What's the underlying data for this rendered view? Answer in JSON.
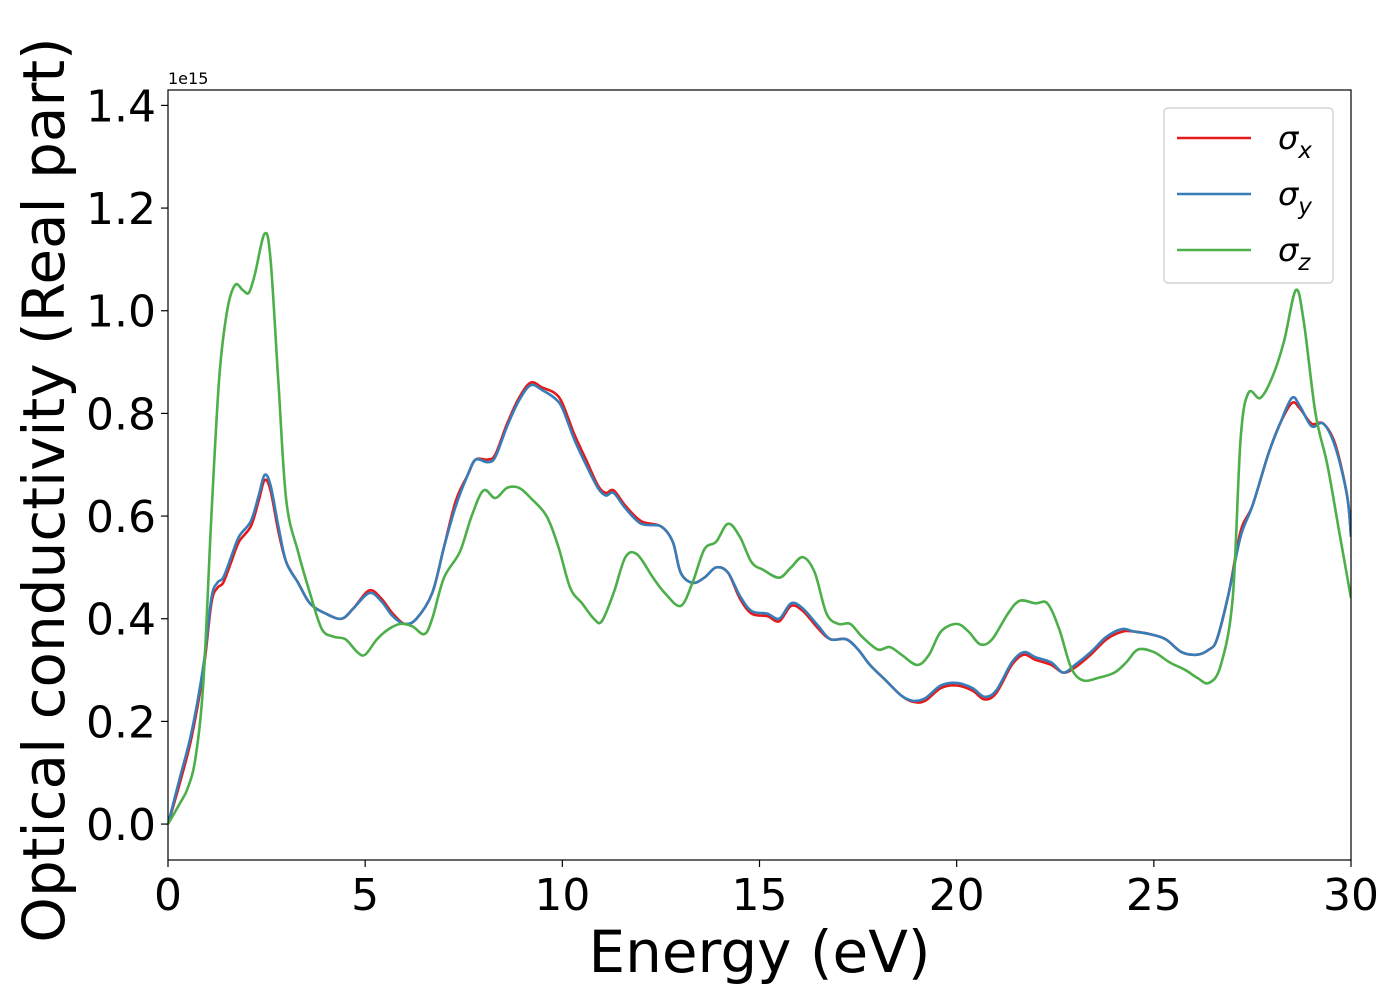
{
  "chart_data": {
    "type": "line",
    "xlabel": "Energy (eV)",
    "ylabel": "Optical conductivity (Real part)",
    "y_offset_label": "1e15",
    "xlim": [
      0,
      30
    ],
    "ylim": [
      -0.07,
      1.43
    ],
    "x_ticks": [
      0,
      5,
      10,
      15,
      20,
      25,
      30
    ],
    "x_tick_labels": [
      "0",
      "5",
      "10",
      "15",
      "20",
      "25",
      "30"
    ],
    "y_ticks": [
      0.0,
      0.2,
      0.4,
      0.6,
      0.8,
      1.0,
      1.2,
      1.4
    ],
    "y_tick_labels": [
      "0.0",
      "0.2",
      "0.4",
      "0.6",
      "0.8",
      "1.0",
      "1.2",
      "1.4"
    ],
    "grid": false,
    "legend_position": "top-right",
    "series": [
      {
        "name": "σx",
        "name_base": "σ",
        "name_sub": "x",
        "color": "#e41a1c",
        "points": [
          [
            0,
            0
          ],
          [
            0.3,
            0.08
          ],
          [
            0.6,
            0.17
          ],
          [
            0.9,
            0.3
          ],
          [
            1.1,
            0.43
          ],
          [
            1.25,
            0.46
          ],
          [
            1.4,
            0.47
          ],
          [
            1.6,
            0.51
          ],
          [
            1.8,
            0.55
          ],
          [
            2.1,
            0.58
          ],
          [
            2.3,
            0.63
          ],
          [
            2.45,
            0.67
          ],
          [
            2.6,
            0.65
          ],
          [
            2.8,
            0.57
          ],
          [
            3.0,
            0.51
          ],
          [
            3.3,
            0.47
          ],
          [
            3.6,
            0.43
          ],
          [
            4.0,
            0.41
          ],
          [
            4.4,
            0.4
          ],
          [
            4.7,
            0.42
          ],
          [
            5.1,
            0.455
          ],
          [
            5.4,
            0.44
          ],
          [
            5.7,
            0.41
          ],
          [
            6.0,
            0.39
          ],
          [
            6.3,
            0.4
          ],
          [
            6.7,
            0.45
          ],
          [
            7.0,
            0.54
          ],
          [
            7.3,
            0.63
          ],
          [
            7.6,
            0.68
          ],
          [
            7.8,
            0.71
          ],
          [
            8.1,
            0.71
          ],
          [
            8.3,
            0.72
          ],
          [
            8.6,
            0.78
          ],
          [
            8.9,
            0.83
          ],
          [
            9.2,
            0.86
          ],
          [
            9.5,
            0.85
          ],
          [
            9.8,
            0.84
          ],
          [
            10.0,
            0.82
          ],
          [
            10.3,
            0.76
          ],
          [
            10.6,
            0.71
          ],
          [
            10.9,
            0.66
          ],
          [
            11.1,
            0.645
          ],
          [
            11.3,
            0.65
          ],
          [
            11.6,
            0.62
          ],
          [
            12.0,
            0.59
          ],
          [
            12.5,
            0.58
          ],
          [
            12.8,
            0.55
          ],
          [
            13.0,
            0.49
          ],
          [
            13.3,
            0.47
          ],
          [
            13.6,
            0.48
          ],
          [
            13.9,
            0.5
          ],
          [
            14.2,
            0.49
          ],
          [
            14.5,
            0.44
          ],
          [
            14.8,
            0.41
          ],
          [
            15.2,
            0.405
          ],
          [
            15.5,
            0.395
          ],
          [
            15.8,
            0.425
          ],
          [
            16.1,
            0.415
          ],
          [
            16.5,
            0.38
          ],
          [
            16.8,
            0.36
          ],
          [
            17.2,
            0.36
          ],
          [
            17.5,
            0.34
          ],
          [
            17.8,
            0.31
          ],
          [
            18.2,
            0.28
          ],
          [
            18.6,
            0.25
          ],
          [
            18.9,
            0.238
          ],
          [
            19.2,
            0.24
          ],
          [
            19.6,
            0.265
          ],
          [
            20.0,
            0.27
          ],
          [
            20.4,
            0.26
          ],
          [
            20.7,
            0.243
          ],
          [
            21.0,
            0.255
          ],
          [
            21.4,
            0.31
          ],
          [
            21.7,
            0.33
          ],
          [
            22.0,
            0.32
          ],
          [
            22.4,
            0.31
          ],
          [
            22.7,
            0.295
          ],
          [
            23.0,
            0.305
          ],
          [
            23.4,
            0.33
          ],
          [
            23.8,
            0.36
          ],
          [
            24.2,
            0.375
          ],
          [
            24.5,
            0.375
          ],
          [
            24.9,
            0.37
          ],
          [
            25.3,
            0.36
          ],
          [
            25.7,
            0.335
          ],
          [
            26.1,
            0.33
          ],
          [
            26.4,
            0.34
          ],
          [
            26.6,
            0.36
          ],
          [
            26.9,
            0.45
          ],
          [
            27.2,
            0.57
          ],
          [
            27.5,
            0.62
          ],
          [
            27.9,
            0.72
          ],
          [
            28.2,
            0.78
          ],
          [
            28.5,
            0.82
          ],
          [
            28.7,
            0.81
          ],
          [
            29.0,
            0.78
          ],
          [
            29.3,
            0.78
          ],
          [
            29.6,
            0.74
          ],
          [
            29.9,
            0.64
          ],
          [
            30.0,
            0.56
          ]
        ]
      },
      {
        "name": "σy",
        "name_base": "σ",
        "name_sub": "y",
        "color": "#377eb8",
        "points": [
          [
            0,
            0
          ],
          [
            0.3,
            0.09
          ],
          [
            0.6,
            0.18
          ],
          [
            0.9,
            0.31
          ],
          [
            1.1,
            0.44
          ],
          [
            1.25,
            0.47
          ],
          [
            1.4,
            0.48
          ],
          [
            1.6,
            0.52
          ],
          [
            1.8,
            0.56
          ],
          [
            2.1,
            0.59
          ],
          [
            2.3,
            0.64
          ],
          [
            2.45,
            0.68
          ],
          [
            2.6,
            0.66
          ],
          [
            2.8,
            0.58
          ],
          [
            3.0,
            0.51
          ],
          [
            3.3,
            0.47
          ],
          [
            3.6,
            0.43
          ],
          [
            4.0,
            0.41
          ],
          [
            4.4,
            0.4
          ],
          [
            4.7,
            0.42
          ],
          [
            5.1,
            0.45
          ],
          [
            5.4,
            0.435
          ],
          [
            5.7,
            0.405
          ],
          [
            6.0,
            0.39
          ],
          [
            6.3,
            0.4
          ],
          [
            6.7,
            0.45
          ],
          [
            7.0,
            0.54
          ],
          [
            7.3,
            0.62
          ],
          [
            7.6,
            0.68
          ],
          [
            7.8,
            0.71
          ],
          [
            8.1,
            0.705
          ],
          [
            8.3,
            0.715
          ],
          [
            8.6,
            0.775
          ],
          [
            8.9,
            0.825
          ],
          [
            9.2,
            0.855
          ],
          [
            9.5,
            0.845
          ],
          [
            9.8,
            0.83
          ],
          [
            10.0,
            0.81
          ],
          [
            10.3,
            0.75
          ],
          [
            10.6,
            0.7
          ],
          [
            10.9,
            0.655
          ],
          [
            11.1,
            0.64
          ],
          [
            11.3,
            0.645
          ],
          [
            11.6,
            0.615
          ],
          [
            12.0,
            0.585
          ],
          [
            12.5,
            0.58
          ],
          [
            12.8,
            0.55
          ],
          [
            13.0,
            0.49
          ],
          [
            13.3,
            0.47
          ],
          [
            13.6,
            0.48
          ],
          [
            13.9,
            0.5
          ],
          [
            14.2,
            0.49
          ],
          [
            14.5,
            0.445
          ],
          [
            14.8,
            0.415
          ],
          [
            15.2,
            0.41
          ],
          [
            15.5,
            0.4
          ],
          [
            15.8,
            0.43
          ],
          [
            16.1,
            0.42
          ],
          [
            16.5,
            0.385
          ],
          [
            16.8,
            0.36
          ],
          [
            17.2,
            0.36
          ],
          [
            17.5,
            0.34
          ],
          [
            17.8,
            0.31
          ],
          [
            18.2,
            0.28
          ],
          [
            18.6,
            0.25
          ],
          [
            18.9,
            0.24
          ],
          [
            19.2,
            0.245
          ],
          [
            19.6,
            0.27
          ],
          [
            20.0,
            0.275
          ],
          [
            20.4,
            0.265
          ],
          [
            20.7,
            0.248
          ],
          [
            21.0,
            0.26
          ],
          [
            21.4,
            0.315
          ],
          [
            21.7,
            0.335
          ],
          [
            22.0,
            0.325
          ],
          [
            22.4,
            0.315
          ],
          [
            22.7,
            0.295
          ],
          [
            23.0,
            0.31
          ],
          [
            23.4,
            0.335
          ],
          [
            23.8,
            0.365
          ],
          [
            24.2,
            0.38
          ],
          [
            24.5,
            0.375
          ],
          [
            24.9,
            0.37
          ],
          [
            25.3,
            0.36
          ],
          [
            25.7,
            0.335
          ],
          [
            26.1,
            0.33
          ],
          [
            26.4,
            0.34
          ],
          [
            26.6,
            0.36
          ],
          [
            26.9,
            0.45
          ],
          [
            27.2,
            0.56
          ],
          [
            27.5,
            0.62
          ],
          [
            27.9,
            0.72
          ],
          [
            28.2,
            0.78
          ],
          [
            28.5,
            0.83
          ],
          [
            28.7,
            0.815
          ],
          [
            29.0,
            0.775
          ],
          [
            29.3,
            0.78
          ],
          [
            29.6,
            0.735
          ],
          [
            29.9,
            0.64
          ],
          [
            30.0,
            0.56
          ]
        ]
      },
      {
        "name": "σz",
        "name_base": "σ",
        "name_sub": "z",
        "color": "#4daf4a",
        "points": [
          [
            0,
            0
          ],
          [
            0.3,
            0.04
          ],
          [
            0.5,
            0.07
          ],
          [
            0.7,
            0.13
          ],
          [
            0.9,
            0.28
          ],
          [
            1.1,
            0.6
          ],
          [
            1.3,
            0.87
          ],
          [
            1.5,
            1.0
          ],
          [
            1.7,
            1.05
          ],
          [
            1.9,
            1.04
          ],
          [
            2.05,
            1.035
          ],
          [
            2.2,
            1.07
          ],
          [
            2.45,
            1.15
          ],
          [
            2.6,
            1.1
          ],
          [
            2.8,
            0.86
          ],
          [
            3.0,
            0.63
          ],
          [
            3.3,
            0.53
          ],
          [
            3.6,
            0.45
          ],
          [
            3.9,
            0.38
          ],
          [
            4.2,
            0.365
          ],
          [
            4.5,
            0.36
          ],
          [
            4.8,
            0.335
          ],
          [
            5.0,
            0.33
          ],
          [
            5.3,
            0.36
          ],
          [
            5.6,
            0.38
          ],
          [
            5.9,
            0.39
          ],
          [
            6.2,
            0.385
          ],
          [
            6.5,
            0.37
          ],
          [
            6.7,
            0.4
          ],
          [
            7.0,
            0.48
          ],
          [
            7.4,
            0.53
          ],
          [
            7.7,
            0.6
          ],
          [
            8.0,
            0.65
          ],
          [
            8.3,
            0.635
          ],
          [
            8.6,
            0.655
          ],
          [
            8.9,
            0.655
          ],
          [
            9.2,
            0.635
          ],
          [
            9.6,
            0.6
          ],
          [
            9.9,
            0.54
          ],
          [
            10.2,
            0.46
          ],
          [
            10.5,
            0.43
          ],
          [
            10.8,
            0.4
          ],
          [
            11.0,
            0.395
          ],
          [
            11.3,
            0.45
          ],
          [
            11.6,
            0.52
          ],
          [
            11.9,
            0.525
          ],
          [
            12.3,
            0.48
          ],
          [
            12.6,
            0.45
          ],
          [
            13.0,
            0.425
          ],
          [
            13.3,
            0.47
          ],
          [
            13.6,
            0.535
          ],
          [
            13.9,
            0.55
          ],
          [
            14.2,
            0.585
          ],
          [
            14.5,
            0.56
          ],
          [
            14.8,
            0.51
          ],
          [
            15.1,
            0.495
          ],
          [
            15.5,
            0.48
          ],
          [
            15.8,
            0.5
          ],
          [
            16.1,
            0.52
          ],
          [
            16.4,
            0.49
          ],
          [
            16.7,
            0.41
          ],
          [
            17.0,
            0.39
          ],
          [
            17.3,
            0.39
          ],
          [
            17.6,
            0.365
          ],
          [
            18.0,
            0.34
          ],
          [
            18.3,
            0.345
          ],
          [
            18.6,
            0.33
          ],
          [
            19.0,
            0.31
          ],
          [
            19.3,
            0.33
          ],
          [
            19.6,
            0.375
          ],
          [
            20.0,
            0.39
          ],
          [
            20.3,
            0.375
          ],
          [
            20.6,
            0.35
          ],
          [
            20.9,
            0.36
          ],
          [
            21.3,
            0.41
          ],
          [
            21.6,
            0.435
          ],
          [
            22.0,
            0.43
          ],
          [
            22.3,
            0.43
          ],
          [
            22.6,
            0.38
          ],
          [
            22.9,
            0.305
          ],
          [
            23.2,
            0.28
          ],
          [
            23.6,
            0.285
          ],
          [
            24.0,
            0.295
          ],
          [
            24.3,
            0.315
          ],
          [
            24.6,
            0.34
          ],
          [
            25.0,
            0.335
          ],
          [
            25.4,
            0.315
          ],
          [
            25.8,
            0.3
          ],
          [
            26.1,
            0.285
          ],
          [
            26.4,
            0.275
          ],
          [
            26.7,
            0.31
          ],
          [
            27.0,
            0.44
          ],
          [
            27.2,
            0.75
          ],
          [
            27.4,
            0.84
          ],
          [
            27.7,
            0.83
          ],
          [
            28.0,
            0.87
          ],
          [
            28.3,
            0.94
          ],
          [
            28.6,
            1.04
          ],
          [
            28.8,
            0.98
          ],
          [
            29.1,
            0.8
          ],
          [
            29.4,
            0.7
          ],
          [
            29.7,
            0.57
          ],
          [
            30.0,
            0.44
          ]
        ]
      }
    ]
  }
}
